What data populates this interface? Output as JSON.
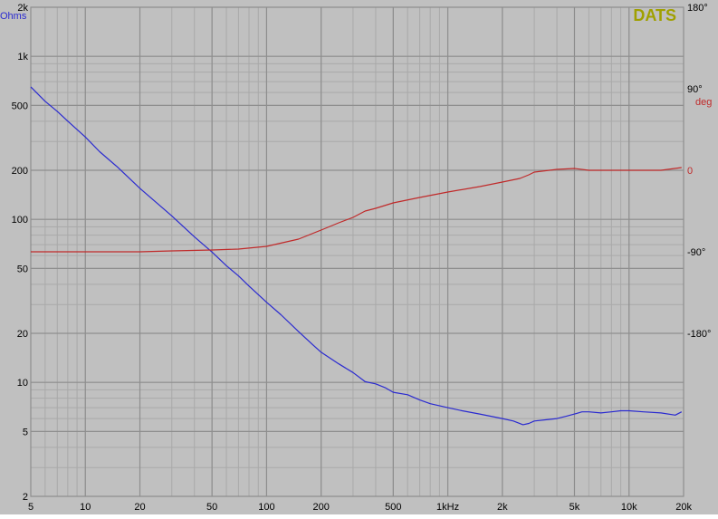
{
  "chart_data": {
    "type": "line",
    "brand": "DATS",
    "colors": {
      "background": "#c0c0c0",
      "grid_major": "#8e8e8e",
      "grid_minor": "#a9a9a9",
      "impedance": "#2a2ad0",
      "phase": "#c02a2a",
      "brand": "#a0a000",
      "tick_text": "#000000"
    },
    "x_axis": {
      "scale": "log",
      "range_hz": [
        5,
        20000
      ],
      "ticks": [
        {
          "value": 5,
          "label": "5"
        },
        {
          "value": 10,
          "label": "10"
        },
        {
          "value": 20,
          "label": "20"
        },
        {
          "value": 50,
          "label": "50"
        },
        {
          "value": 100,
          "label": "100"
        },
        {
          "value": 200,
          "label": "200"
        },
        {
          "value": 500,
          "label": "500"
        },
        {
          "value": 1000,
          "label": "1kHz"
        },
        {
          "value": 2000,
          "label": "2k"
        },
        {
          "value": 5000,
          "label": "5k"
        },
        {
          "value": 10000,
          "label": "10k"
        },
        {
          "value": 20000,
          "label": "20k"
        }
      ]
    },
    "y_left": {
      "unit_label": "Ohms",
      "scale": "log",
      "range_ohms": [
        2,
        2000
      ],
      "ticks": [
        {
          "value": 2,
          "label": "2"
        },
        {
          "value": 5,
          "label": "5"
        },
        {
          "value": 10,
          "label": "10"
        },
        {
          "value": 20,
          "label": "20"
        },
        {
          "value": 50,
          "label": "50"
        },
        {
          "value": 100,
          "label": "100"
        },
        {
          "value": 200,
          "label": "200"
        },
        {
          "value": 500,
          "label": "500"
        },
        {
          "value": 1000,
          "label": "1k"
        },
        {
          "value": 2000,
          "label": "2k"
        }
      ]
    },
    "y_right": {
      "unit_label": "deg",
      "range_deg": [
        -360,
        180
      ],
      "ticks": [
        {
          "value": 180,
          "label": "180°"
        },
        {
          "value": 90,
          "label": "90°"
        },
        {
          "value": 0,
          "label": "0"
        },
        {
          "value": -90,
          "label": "-90°"
        },
        {
          "value": -180,
          "label": "-180°"
        }
      ]
    },
    "series": [
      {
        "key": "impedance",
        "axis": "left",
        "x": [
          5,
          6,
          7,
          8,
          10,
          12,
          15,
          20,
          25,
          30,
          40,
          50,
          60,
          70,
          80,
          100,
          120,
          150,
          180,
          200,
          250,
          300,
          350,
          400,
          450,
          500,
          600,
          700,
          800,
          1000,
          1200,
          1500,
          2000,
          2300,
          2600,
          2800,
          3000,
          3500,
          4000,
          4500,
          5000,
          5500,
          6000,
          7000,
          8000,
          9000,
          10000,
          12000,
          15000,
          18000,
          19500
        ],
        "y": [
          650,
          530,
          460,
          400,
          320,
          260,
          210,
          155,
          125,
          105,
          78,
          63,
          52,
          45,
          39,
          31,
          26,
          20.5,
          17,
          15.3,
          13,
          11.5,
          10.1,
          9.8,
          9.3,
          8.7,
          8.4,
          7.8,
          7.4,
          7.0,
          6.7,
          6.4,
          6.0,
          5.8,
          5.5,
          5.6,
          5.8,
          5.9,
          6.0,
          6.2,
          6.4,
          6.6,
          6.6,
          6.5,
          6.6,
          6.7,
          6.7,
          6.6,
          6.5,
          6.3,
          6.6
        ]
      },
      {
        "key": "phase",
        "axis": "right",
        "x": [
          5,
          10,
          20,
          30,
          50,
          70,
          100,
          150,
          200,
          250,
          300,
          350,
          400,
          500,
          700,
          1000,
          1500,
          2000,
          2500,
          2800,
          3000,
          4000,
          5000,
          6000,
          8000,
          10000,
          15000,
          19500
        ],
        "y": [
          -90,
          -90,
          -90,
          -89,
          -88,
          -87,
          -84,
          -76,
          -66,
          -58,
          -52,
          -45,
          -42,
          -36,
          -30,
          -24,
          -18,
          -13,
          -9,
          -5,
          -2,
          1,
          2,
          0,
          0,
          0,
          0,
          3
        ]
      }
    ]
  }
}
